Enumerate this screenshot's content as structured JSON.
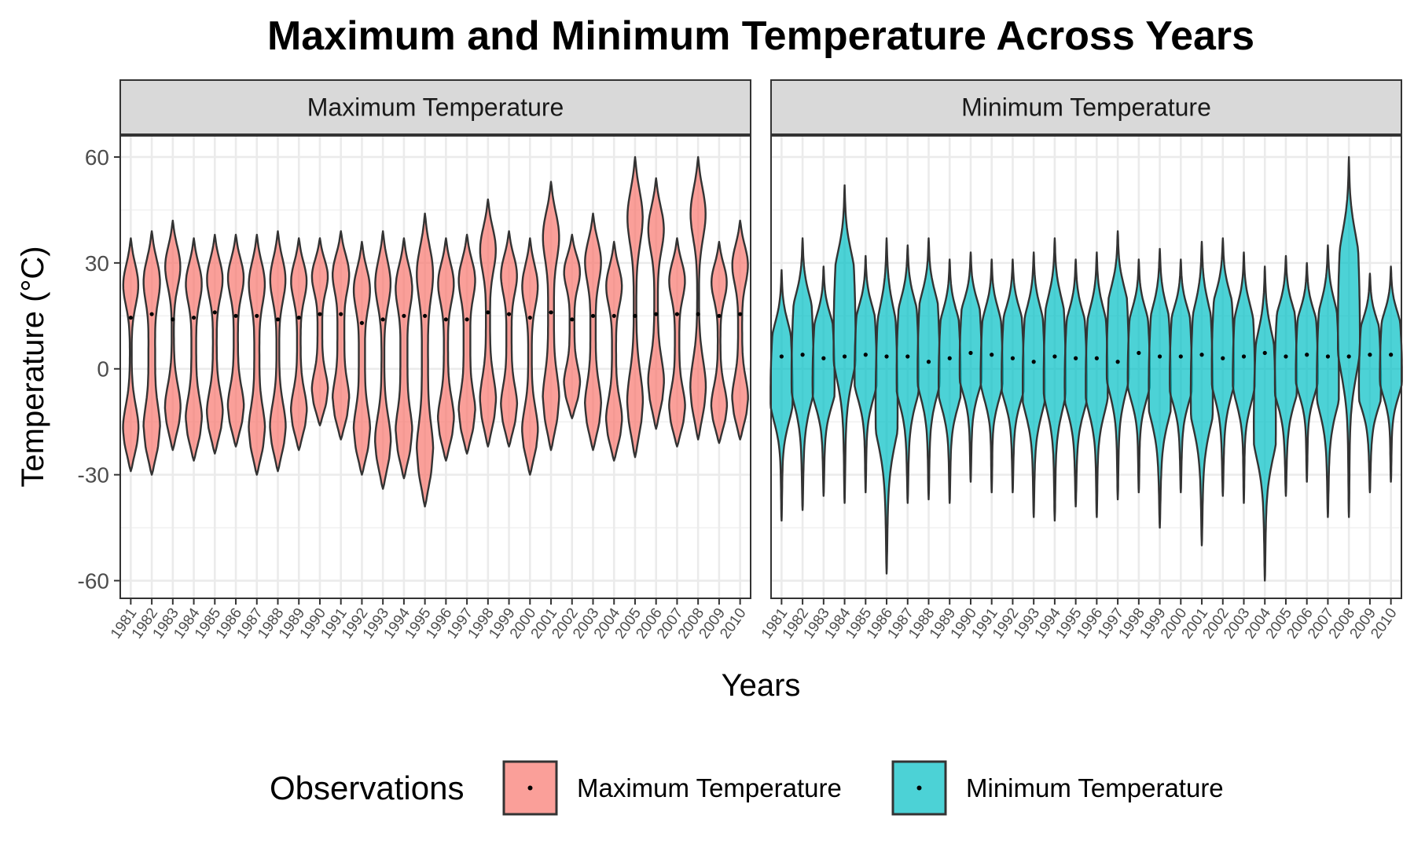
{
  "chart_data": {
    "type": "violin",
    "title": "Maximum and Minimum Temperature Across Years",
    "xlabel": "Years",
    "ylabel": "Temperature (°C)",
    "ylim": [
      -65,
      66
    ],
    "yticks": [
      -60,
      -30,
      0,
      30,
      60
    ],
    "grid": true,
    "categories": [
      "1981",
      "1982",
      "1983",
      "1984",
      "1985",
      "1986",
      "1987",
      "1988",
      "1989",
      "1990",
      "1991",
      "1992",
      "1993",
      "1994",
      "1995",
      "1996",
      "1997",
      "1998",
      "1999",
      "2000",
      "2001",
      "2002",
      "2003",
      "2004",
      "2005",
      "2006",
      "2007",
      "2008",
      "2009",
      "2010"
    ],
    "legend": {
      "title": "Observations",
      "position": "bottom"
    },
    "panels": [
      {
        "name": "Maximum Temperature",
        "color": "#F8766D",
        "min": [
          -29,
          -30,
          -23,
          -26,
          -24,
          -22,
          -30,
          -29,
          -23,
          -16,
          -20,
          -30,
          -34,
          -31,
          -39,
          -26,
          -24,
          -22,
          -22,
          -30,
          -23,
          -14,
          -23,
          -26,
          -25,
          -17,
          -22,
          -20,
          -21,
          -20
        ],
        "max": [
          37,
          39,
          42,
          37,
          38,
          38,
          38,
          39,
          37,
          37,
          39,
          36,
          39,
          37,
          44,
          37,
          38,
          48,
          39,
          37,
          53,
          38,
          44,
          36,
          60,
          54,
          37,
          60,
          36,
          42
        ],
        "median": [
          14.5,
          15.5,
          14,
          14.5,
          16,
          15,
          15,
          14,
          14.5,
          15.5,
          15.5,
          13,
          14,
          15,
          15,
          14,
          14,
          16,
          15.5,
          14.5,
          16,
          14,
          15,
          15,
          15,
          15.5,
          15.5,
          15.5,
          15,
          15.5
        ]
      },
      {
        "name": "Minimum Temperature",
        "color": "#00BFC4",
        "min": [
          -43,
          -40,
          -36,
          -38,
          -35,
          -58,
          -38,
          -37,
          -38,
          -32,
          -35,
          -35,
          -42,
          -43,
          -39,
          -42,
          -37,
          -35,
          -45,
          -35,
          -50,
          -36,
          -38,
          -60,
          -36,
          -32,
          -42,
          -42,
          -35,
          -32
        ],
        "max": [
          28,
          37,
          29,
          52,
          32,
          37,
          35,
          37,
          31,
          33,
          31,
          31,
          33,
          37,
          31,
          33,
          39,
          31,
          34,
          31,
          36,
          37,
          33,
          29,
          32,
          30,
          35,
          60,
          27,
          29
        ],
        "median": [
          3.5,
          4,
          3,
          3.5,
          4,
          3.5,
          3.5,
          2,
          3,
          4.5,
          4,
          3,
          2,
          3.5,
          3,
          3,
          2,
          4.5,
          3.5,
          3.5,
          4,
          3,
          3.5,
          4.5,
          3.5,
          4,
          3.5,
          3.5,
          4,
          4
        ]
      }
    ]
  }
}
